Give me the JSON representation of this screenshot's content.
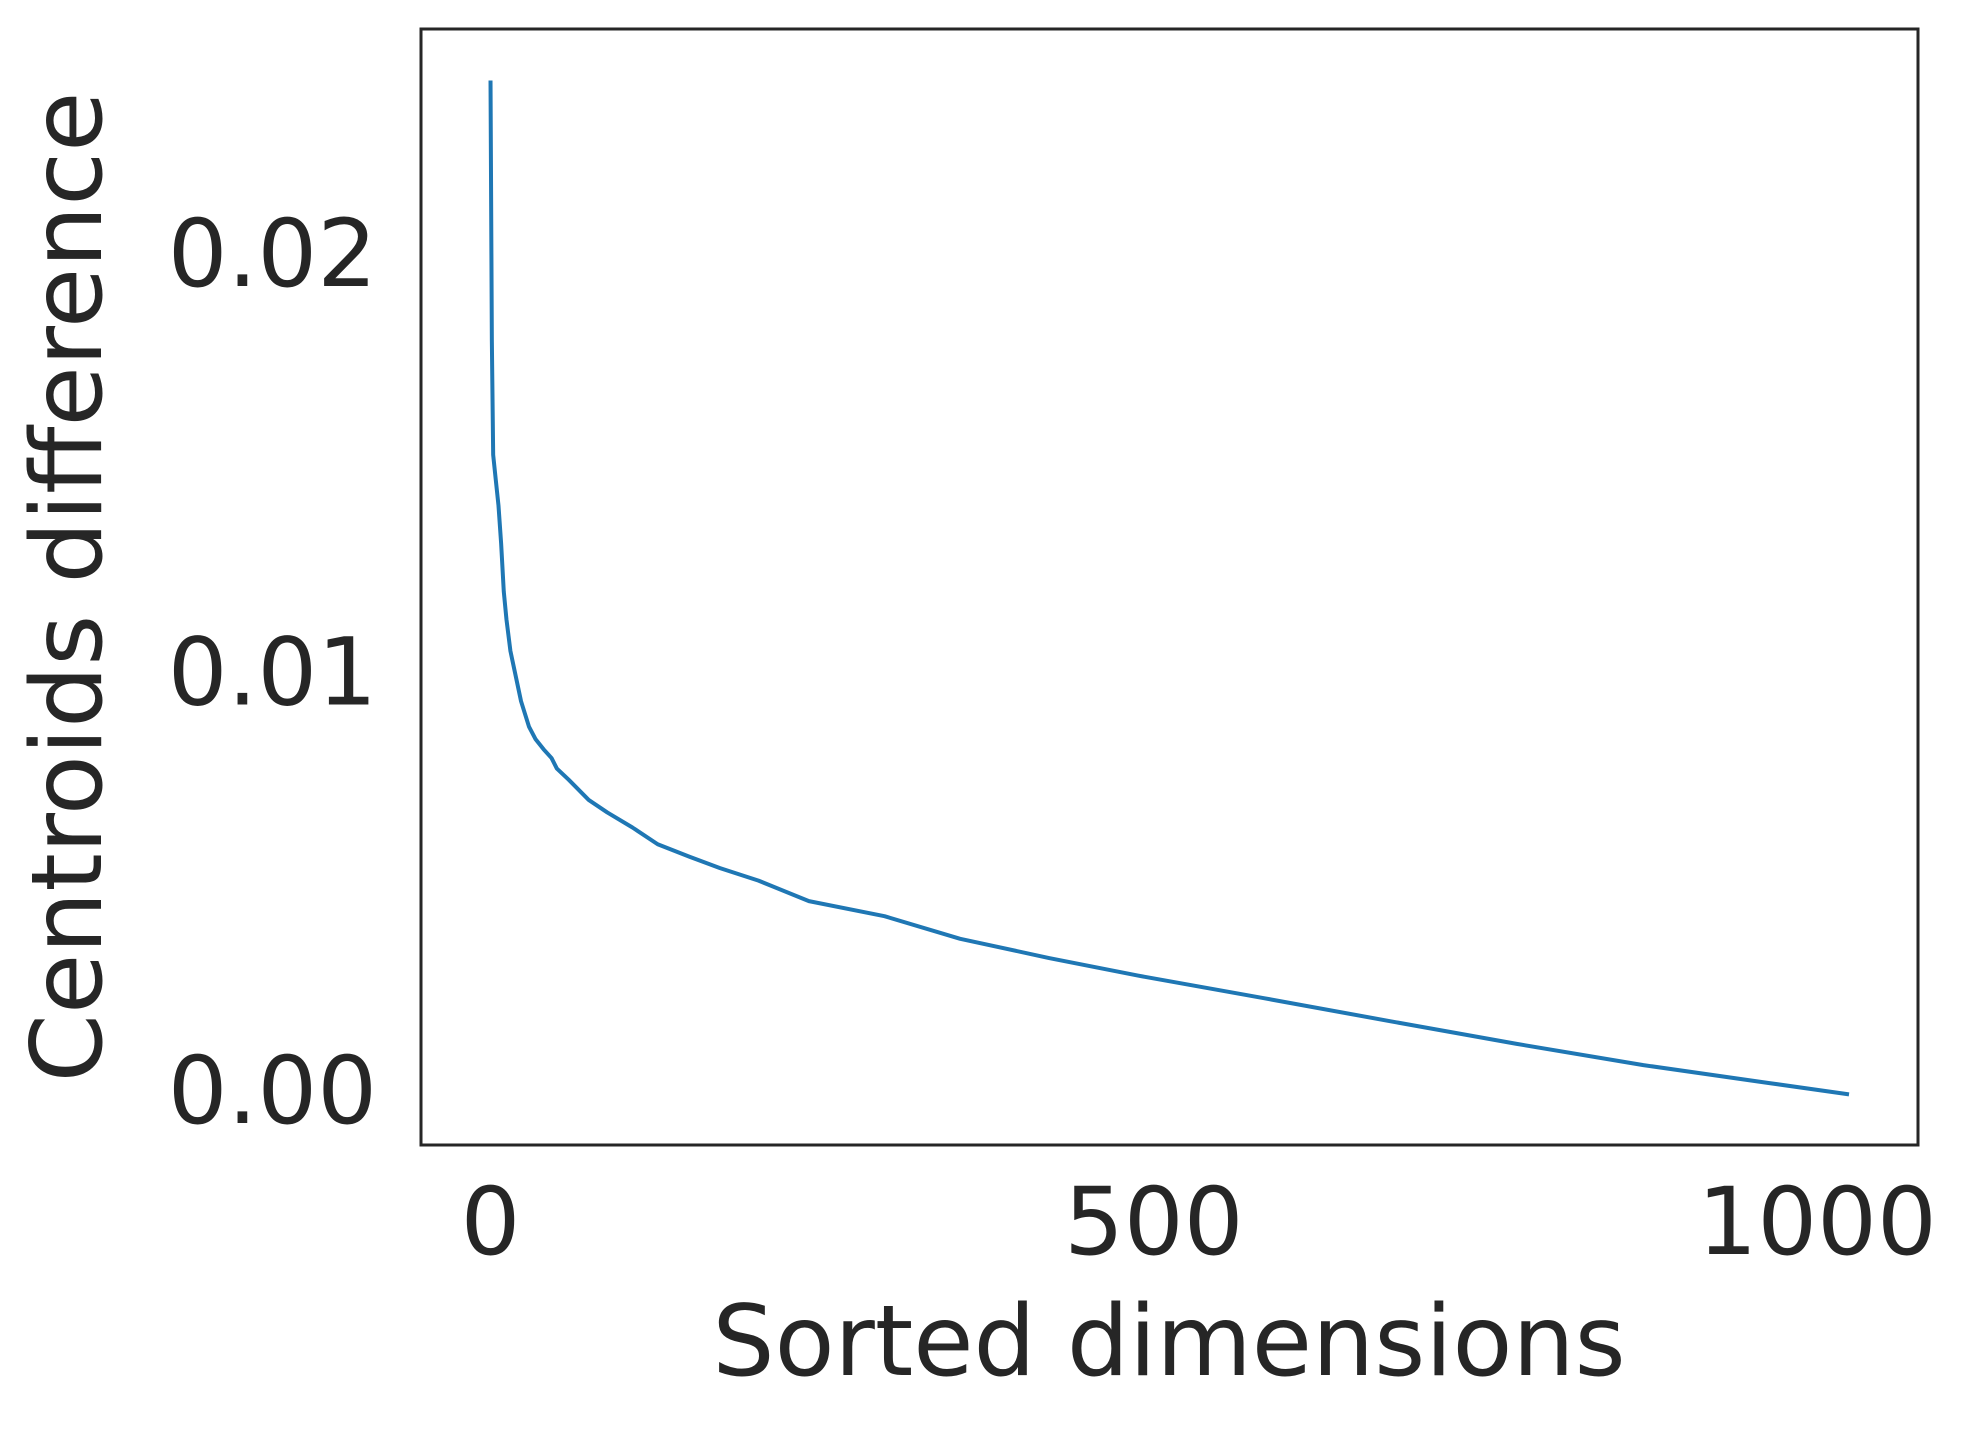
{
  "chart_data": {
    "type": "line",
    "x_label": "Sorted dimensions",
    "y_label": "Centroids difference",
    "x": [
      0,
      1,
      2,
      4,
      6,
      8,
      10,
      12,
      15,
      18,
      23,
      29,
      34,
      40,
      46,
      50,
      59,
      74,
      88,
      107,
      126,
      150,
      173,
      202,
      240,
      297,
      354,
      421,
      488,
      583,
      678,
      773,
      869,
      964,
      1024
    ],
    "series": [
      {
        "name": "Centroids difference",
        "color": "#1f77b4",
        "values": [
          0.0243,
          0.0181,
          0.01535,
          0.01474,
          0.01414,
          0.01323,
          0.01208,
          0.01142,
          0.01066,
          0.01021,
          0.00946,
          0.00885,
          0.00855,
          0.00831,
          0.0081,
          0.00785,
          0.00758,
          0.0071,
          0.0068,
          0.00644,
          0.00604,
          0.00574,
          0.00547,
          0.00517,
          0.00468,
          0.00432,
          0.00378,
          0.00332,
          0.0029,
          0.00236,
          0.00181,
          0.00127,
          0.00076,
          0.00033,
          6e-05
        ]
      }
    ],
    "xlim": [
      -52.4,
      1076
    ],
    "ylim": [
      -0.00115,
      0.02553
    ],
    "xticks": [
      0,
      500,
      1000
    ],
    "yticks": [
      {
        "value": 0,
        "label": "0.00"
      },
      {
        "value": 0.01,
        "label": "0.01"
      },
      {
        "value": 0.02,
        "label": "0.02"
      }
    ],
    "grid": false
  }
}
